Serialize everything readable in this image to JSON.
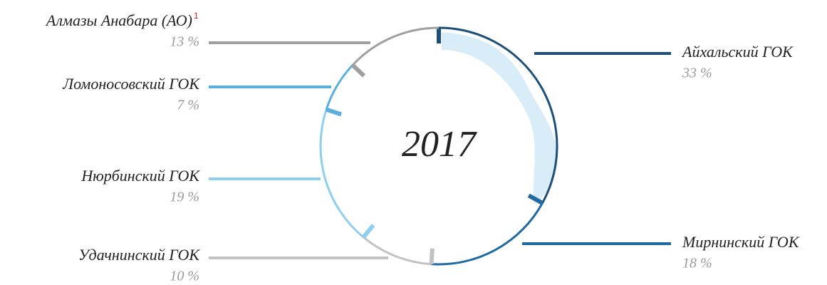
{
  "chart_data": {
    "type": "pie",
    "center_label": "2017",
    "categories": [
      "Айхальский ГОК",
      "Мирнинский ГОК",
      "Удачнинский ГОК",
      "Нюрбинский ГОК",
      "Ломоносовский ГОК",
      "Алмазы Анабара (АО)"
    ],
    "values": [
      33,
      18,
      10,
      19,
      7,
      13
    ],
    "value_labels": [
      "33 %",
      "18 %",
      "10 %",
      "19 %",
      "7 %",
      "13 %"
    ],
    "colors": [
      "#1d4f7c",
      "#1f6aa3",
      "#c0c2c4",
      "#8fcfee",
      "#5aafe0",
      "#9d9fa2"
    ],
    "annotation": "1"
  }
}
